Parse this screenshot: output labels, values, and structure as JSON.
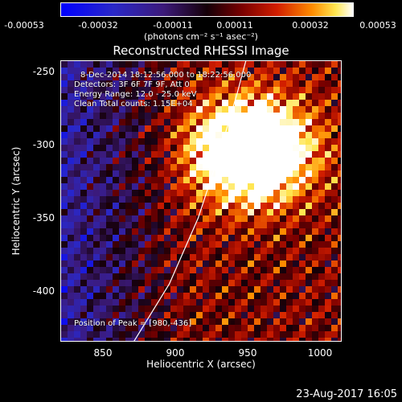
{
  "chart_data": {
    "type": "heatmap",
    "title": "Reconstructed RHESSI Image",
    "xlabel": "Heliocentric X (arcsec)",
    "ylabel": "Heliocentric Y (arcsec)",
    "xlim": [
      820,
      1015
    ],
    "ylim": [
      -435,
      -243
    ],
    "xticks": [
      "850",
      "900",
      "950",
      "1000"
    ],
    "xtick_values": [
      850,
      900,
      950,
      1000
    ],
    "yticks": [
      "-250",
      "-300",
      "-350",
      "-400"
    ],
    "ytick_values": [
      -250,
      -300,
      -350,
      -400
    ],
    "colorbar": {
      "ticks": [
        "-0.00053",
        "-0.00032",
        "-0.00011",
        "0.00011",
        "0.00032",
        "0.00053"
      ],
      "tick_values": [
        -0.00053,
        -0.00032,
        -0.00011,
        0.00011,
        0.00032,
        0.00053
      ],
      "units_text": "(photons cm⁻² s⁻¹ asec⁻²)",
      "range": [
        -0.00053,
        0.00053
      ]
    },
    "info_lines": [
      "8-Dec-2014 18:12:56.000 to 18:22:56.000",
      "Detectors: 3F 6F 7F 9F, Att 0",
      "Energy Range: 12.0 - 25.0 keV",
      "Clean     Total counts: 1.15E+04"
    ],
    "limb_curve": [
      {
        "x": 870,
        "y": -435
      },
      {
        "x": 895,
        "y": -395
      },
      {
        "x": 915,
        "y": -350
      },
      {
        "x": 930,
        "y": -305
      },
      {
        "x": 942,
        "y": -265
      },
      {
        "x": 948,
        "y": -243
      }
    ],
    "peak": {
      "label": "Position of Peak = [980,-436]",
      "x": 980,
      "y": -436
    }
  },
  "footer": {
    "timestamp": "23-Aug-2017 16:05"
  }
}
